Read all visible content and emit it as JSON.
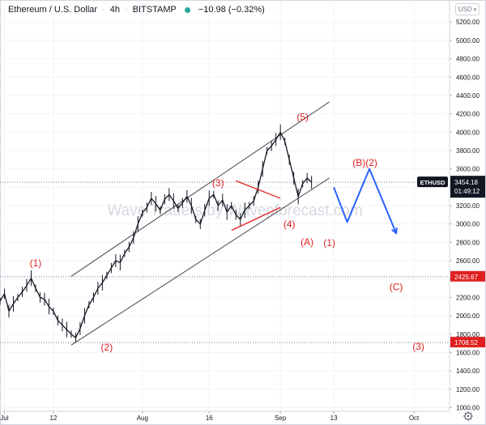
{
  "header": {
    "symbol": "Ethereum / U.S. Dollar",
    "interval": "4h",
    "exchange": "BITSTAMP",
    "change": "−10.98 (−0.32%)"
  },
  "currency_button": "USD",
  "watermark": "Wave Traders by Wavepforecast.com",
  "colors": {
    "wave_labels": "#e02020",
    "forecast_path": "#2962ff",
    "channel": "#444444",
    "price_line": "#131722",
    "badge_bg": "#131722",
    "level_badge_bg": "#e02020"
  },
  "chart_data": {
    "type": "line",
    "title": "",
    "xlabel": "",
    "ylabel": "",
    "ylim": [
      960,
      5440
    ],
    "y_ticks": [
      1000,
      1200,
      1400,
      1600,
      1800,
      2000,
      2200,
      2400,
      2600,
      2800,
      3000,
      3200,
      3400,
      3600,
      3800,
      4000,
      4200,
      4400,
      4600,
      4800,
      5000,
      5200
    ],
    "y_tick_labels": [
      "1000.00",
      "1200.00",
      "1400.00",
      "1600.00",
      "1800.00",
      "2000.00",
      "2200.00",
      "2400.00",
      "2600.00",
      "2800.00",
      "3000.00",
      "3200.00",
      "3400.00",
      "3600.00",
      "3800.00",
      "4000.00",
      "4200.00",
      "4400.00",
      "4600.00",
      "4800.00",
      "5000.00",
      "5200.00"
    ],
    "x_ticks": [
      {
        "day": 1,
        "label": "Jul"
      },
      {
        "day": 12,
        "label": "12"
      },
      {
        "day": 32,
        "label": "Aug"
      },
      {
        "day": 47,
        "label": "16"
      },
      {
        "day": 63,
        "label": "Sep"
      },
      {
        "day": 75,
        "label": "13"
      },
      {
        "day": 93,
        "label": "Oct"
      }
    ],
    "xlim": [
      0,
      101
    ],
    "series": [
      {
        "values": [
          [
            0,
            2160
          ],
          [
            1,
            2240
          ],
          [
            2,
            2050
          ],
          [
            3,
            2130
          ],
          [
            4,
            2200
          ],
          [
            5,
            2260
          ],
          [
            6,
            2330
          ],
          [
            7,
            2410
          ],
          [
            8,
            2300
          ],
          [
            9,
            2200
          ],
          [
            10,
            2180
          ],
          [
            11,
            2100
          ],
          [
            12,
            2050
          ],
          [
            13,
            1950
          ],
          [
            14,
            1900
          ],
          [
            15,
            1850
          ],
          [
            16,
            1800
          ],
          [
            17,
            1760
          ],
          [
            18,
            1860
          ],
          [
            19,
            2000
          ],
          [
            20,
            2120
          ],
          [
            21,
            2200
          ],
          [
            22,
            2300
          ],
          [
            23,
            2360
          ],
          [
            24,
            2440
          ],
          [
            25,
            2520
          ],
          [
            26,
            2600
          ],
          [
            27,
            2580
          ],
          [
            28,
            2680
          ],
          [
            29,
            2750
          ],
          [
            30,
            2850
          ],
          [
            31,
            3000
          ],
          [
            32,
            3120
          ],
          [
            33,
            3180
          ],
          [
            34,
            3280
          ],
          [
            35,
            3220
          ],
          [
            36,
            3150
          ],
          [
            37,
            3270
          ],
          [
            38,
            3320
          ],
          [
            39,
            3250
          ],
          [
            40,
            3170
          ],
          [
            41,
            3230
          ],
          [
            42,
            3300
          ],
          [
            43,
            3200
          ],
          [
            44,
            3050
          ],
          [
            45,
            3000
          ],
          [
            46,
            3150
          ],
          [
            47,
            3280
          ],
          [
            48,
            3320
          ],
          [
            49,
            3200
          ],
          [
            50,
            3260
          ],
          [
            51,
            3130
          ],
          [
            52,
            3200
          ],
          [
            53,
            3100
          ],
          [
            54,
            3050
          ],
          [
            55,
            3150
          ],
          [
            56,
            3200
          ],
          [
            57,
            3250
          ],
          [
            58,
            3400
          ],
          [
            59,
            3600
          ],
          [
            60,
            3800
          ],
          [
            61,
            3850
          ],
          [
            62,
            3920
          ],
          [
            63,
            4000
          ],
          [
            64,
            3900
          ],
          [
            65,
            3700
          ],
          [
            66,
            3500
          ],
          [
            67,
            3300
          ],
          [
            68,
            3440
          ],
          [
            69,
            3500
          ],
          [
            70,
            3454
          ]
        ]
      }
    ],
    "markers": [
      {
        "label": "ETHUSD",
        "value": 3454.18,
        "price_label": "3454.18",
        "countdown": "01:49:12"
      },
      {
        "value": 2425.67,
        "price_label": "2425.67"
      },
      {
        "value": 1708.52,
        "price_label": "1708.52"
      }
    ],
    "horizontal_levels": [
      3454.18,
      2425.67,
      1708.52
    ],
    "annotations": [
      {
        "text": "(1)",
        "day": 8,
        "price": 2540
      },
      {
        "text": "(2)",
        "day": 24,
        "price": 1620
      },
      {
        "text": "(3)",
        "day": 49,
        "price": 3410
      },
      {
        "text": "(4)",
        "day": 65,
        "price": 2960
      },
      {
        "text": "(5)",
        "day": 68,
        "price": 4130
      },
      {
        "text": "(A)",
        "day": 69,
        "price": 2770
      },
      {
        "text": "(1)",
        "day": 74,
        "price": 2760
      },
      {
        "text": "(B)(2)",
        "day": 82,
        "price": 3630
      },
      {
        "text": "(C)",
        "day": 89,
        "price": 2280
      },
      {
        "text": "(3)",
        "day": 94,
        "price": 1630
      }
    ],
    "channel_lines": [
      {
        "from": [
          16,
          1680
        ],
        "to": [
          74,
          3500
        ]
      },
      {
        "from": [
          16,
          2430
        ],
        "to": [
          74,
          4330
        ]
      }
    ],
    "red_lines": [
      {
        "from": [
          52,
          2930
        ],
        "to": [
          63,
          3180
        ]
      },
      {
        "from": [
          53,
          3470
        ],
        "to": [
          63,
          3280
        ]
      }
    ],
    "forecast_path": [
      [
        75,
        3400
      ],
      [
        78,
        3020
      ],
      [
        83,
        3600
      ],
      [
        89,
        2900
      ]
    ]
  }
}
